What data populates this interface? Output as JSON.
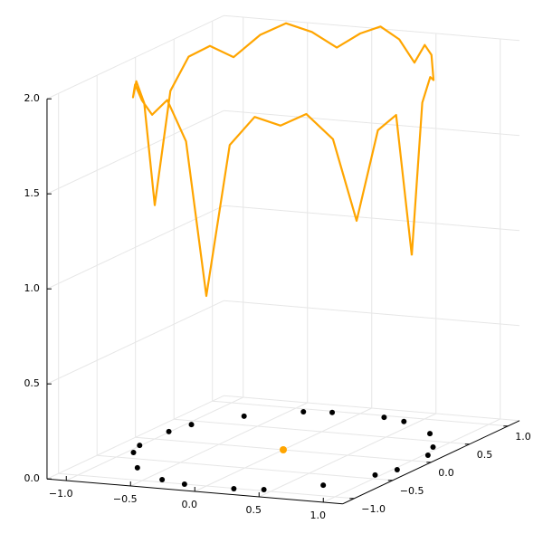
{
  "chart_data": {
    "type": "scatter3d",
    "xlim": [
      -1.15,
      1.15
    ],
    "ylim": [
      -1.15,
      1.15
    ],
    "zlim": [
      0,
      2.0
    ],
    "xticks": [
      {
        "value": -1,
        "label": "−1.0"
      },
      {
        "value": -0.5,
        "label": "−0.5"
      },
      {
        "value": 0,
        "label": "0.0"
      },
      0.5,
      {
        "value": 1,
        "label": "1.0"
      }
    ],
    "yticks": [
      {
        "value": -1,
        "label": "−1.0"
      },
      {
        "value": -0.5,
        "label": "−0.5"
      },
      {
        "value": 0,
        "label": "0.0"
      },
      0.5,
      {
        "value": 1,
        "label": "1.0"
      }
    ],
    "zticks": [
      {
        "value": 0,
        "label": "0.0"
      },
      0.5,
      {
        "value": 1,
        "label": "1.0"
      },
      1.5,
      {
        "value": 2,
        "label": "2.0"
      }
    ],
    "grid": true,
    "series": [
      {
        "mode": "markers",
        "color": "#000000",
        "x": [
          -0.96,
          -1.01,
          -1.01,
          -0.95,
          -0.71,
          -0.38,
          -0.17,
          0.22,
          0.43,
          0.76,
          0.96,
          1.03,
          1.03,
          0.95,
          0.74,
          0.4,
          0.21,
          -0.2,
          -0.4,
          -0.73
        ],
        "y": [
          0.41,
          0.2,
          -0.18,
          -0.36,
          -0.71,
          -0.94,
          -1.0,
          -1.01,
          -0.97,
          -0.75,
          -0.41,
          -0.24,
          0.16,
          0.36,
          0.67,
          0.9,
          0.96,
          0.97,
          0.93,
          0.71
        ],
        "z": [
          0,
          0,
          0,
          0,
          0,
          0,
          0,
          0,
          0,
          0,
          0,
          0,
          0,
          0,
          0,
          0,
          0,
          0,
          0,
          0
        ]
      },
      {
        "mode": "markers",
        "color": "#ffa500",
        "x": [
          0
        ],
        "y": [
          0
        ],
        "z": [
          0
        ]
      },
      {
        "mode": "line",
        "color": "#ffa500",
        "x": [
          1,
          0.98,
          0.94,
          0.87,
          0.77,
          0.64,
          0.5,
          0.34,
          0.17,
          0,
          -0.17,
          -0.34,
          -0.5,
          -0.64,
          -0.77,
          -0.87,
          -0.94,
          -0.98,
          -1,
          -0.98,
          -0.94,
          -0.87,
          -0.77,
          -0.64,
          -0.5,
          -0.34,
          -0.17,
          0,
          0.17,
          0.34,
          0.5,
          0.64,
          0.77,
          0.87,
          0.94,
          0.98,
          1
        ],
        "y": [
          0,
          0.17,
          0.34,
          0.5,
          0.64,
          0.77,
          0.87,
          0.94,
          0.98,
          1,
          0.98,
          0.94,
          0.87,
          0.77,
          0.64,
          0.5,
          0.34,
          0.17,
          0,
          -0.17,
          -0.34,
          -0.5,
          -0.64,
          -0.77,
          -0.87,
          -0.94,
          -0.98,
          -1,
          -0.98,
          -0.94,
          -0.87,
          -0.77,
          -0.64,
          -0.5,
          -0.34,
          -0.17,
          0
        ],
        "z": [
          1.08,
          1.85,
          1.95,
          1.9,
          2.0,
          2.02,
          1.9,
          2.0,
          2.05,
          2.0,
          1.92,
          2.0,
          2.05,
          2.0,
          1.9,
          1.98,
          1.95,
          1.8,
          1.23,
          1.8,
          1.95,
          1.9,
          2.0,
          1.95,
          1.9,
          2.0,
          1.8,
          1.0,
          1.8,
          1.95,
          1.9,
          1.95,
          1.8,
          1.35,
          1.8,
          1.85,
          1.08
        ]
      }
    ]
  }
}
